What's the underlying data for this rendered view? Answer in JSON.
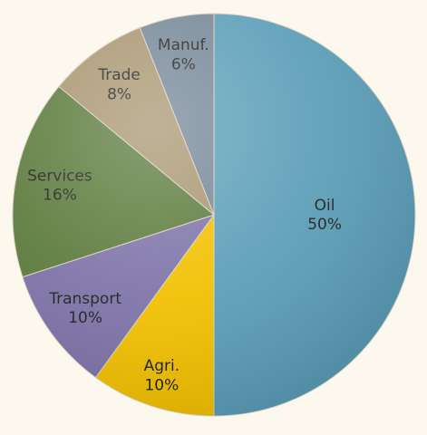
{
  "chart_data": {
    "type": "pie",
    "title": "",
    "legend": "none",
    "colors": {
      "background": "#fcf8ee",
      "label_text": "#1f1f1f"
    },
    "slices": [
      {
        "label": "Oil",
        "value": 50,
        "value_label": "50%",
        "color": "#5b9eb8"
      },
      {
        "label": "Agri.",
        "value": 10,
        "value_label": "10%",
        "color": "#f2c000"
      },
      {
        "label": "Transport",
        "value": 10,
        "value_label": "10%",
        "color": "#7d73a8"
      },
      {
        "label": "Services",
        "value": 16,
        "value_label": "16%",
        "color": "#5b7a3b"
      },
      {
        "label": "Trade",
        "value": 8,
        "value_label": "8%",
        "color": "#a8956f"
      },
      {
        "label": "Manuf.",
        "value": 6,
        "value_label": "6%",
        "color": "#748696"
      }
    ]
  }
}
